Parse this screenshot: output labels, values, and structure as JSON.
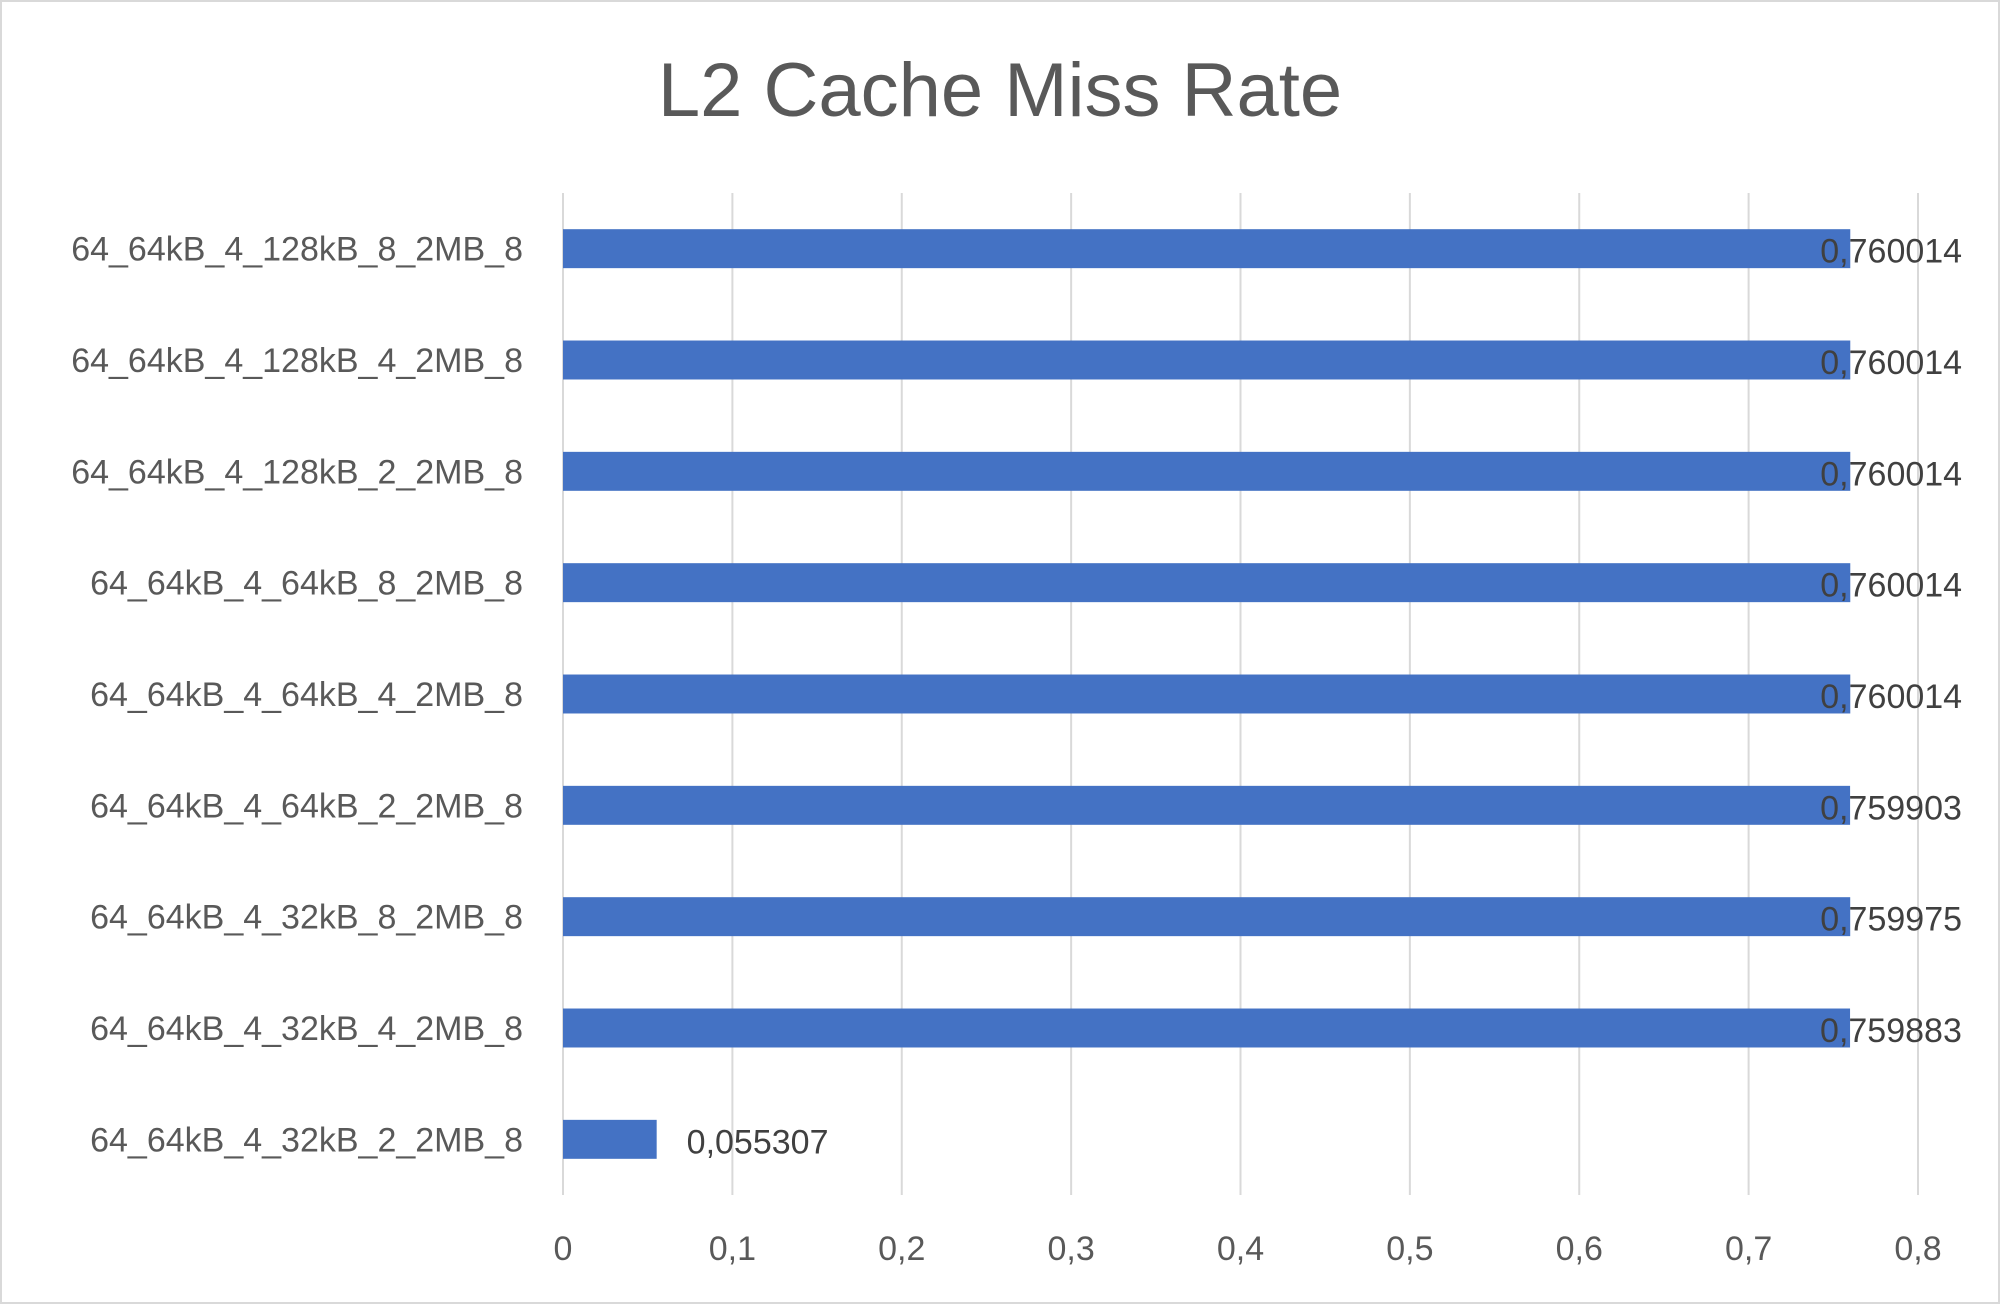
{
  "chart_data": {
    "type": "bar",
    "orientation": "horizontal",
    "title": "L2 Cache Miss Rate",
    "xlabel": "",
    "ylabel": "",
    "categories": [
      "64_64kB_4_128kB_8_2MB_8",
      "64_64kB_4_128kB_4_2MB_8",
      "64_64kB_4_128kB_2_2MB_8",
      "64_64kB_4_64kB_8_2MB_8",
      "64_64kB_4_64kB_4_2MB_8",
      "64_64kB_4_64kB_2_2MB_8",
      "64_64kB_4_32kB_8_2MB_8",
      "64_64kB_4_32kB_4_2MB_8",
      "64_64kB_4_32kB_2_2MB_8"
    ],
    "values": [
      0.760014,
      0.760014,
      0.760014,
      0.760014,
      0.760014,
      0.759903,
      0.759975,
      0.759883,
      0.055307
    ],
    "value_labels": [
      "0,760014",
      "0,760014",
      "0,760014",
      "0,760014",
      "0,760014",
      "0,759903",
      "0,759975",
      "0,759883",
      "0,055307"
    ],
    "xlim": [
      0,
      0.8
    ],
    "x_ticks": [
      0,
      0.1,
      0.2,
      0.3,
      0.4,
      0.5,
      0.6,
      0.7,
      0.8
    ],
    "x_tick_labels": [
      "0",
      "0,1",
      "0,2",
      "0,3",
      "0,4",
      "0,5",
      "0,6",
      "0,7",
      "0,8"
    ],
    "grid": "vertical",
    "legend": "none",
    "bar_color": "#4472C4",
    "grid_color": "#D9D9D9",
    "text_color": "#595959"
  }
}
